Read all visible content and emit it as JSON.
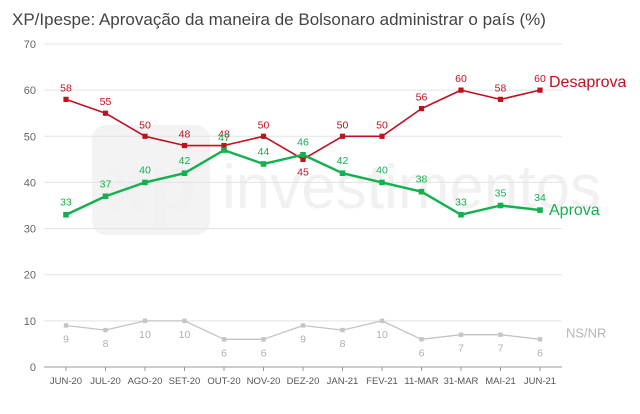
{
  "chart_data": {
    "type": "line",
    "title": "XP/Ipespe: Aprovação da maneira de Bolsonaro administrar o país (%)",
    "categories": [
      "JUN-20",
      "JUL-20",
      "AGO-20",
      "SET-20",
      "OUT-20",
      "NOV-20",
      "DEZ-20",
      "JAN-21",
      "FEV-21",
      "11-MAR",
      "31-MAR",
      "MAI-21",
      "JUN-21"
    ],
    "ylim": [
      0,
      70
    ],
    "yticks": [
      0,
      10,
      20,
      30,
      40,
      50,
      60,
      70
    ],
    "grid": true,
    "series": [
      {
        "name": "Desaprova",
        "color": "#c0111f",
        "values": [
          58,
          55,
          50,
          48,
          48,
          50,
          45,
          50,
          50,
          56,
          60,
          58,
          60
        ]
      },
      {
        "name": "Aprova",
        "color": "#13b04f",
        "values": [
          33,
          37,
          40,
          42,
          47,
          44,
          46,
          42,
          40,
          38,
          33,
          35,
          34
        ]
      },
      {
        "name": "NS/NR",
        "color": "#c4c4c4",
        "values": [
          9,
          8,
          10,
          10,
          6,
          6,
          9,
          8,
          10,
          6,
          7,
          7,
          6
        ]
      }
    ]
  },
  "watermark": {
    "brand": "xp",
    "text": "investimentos"
  }
}
